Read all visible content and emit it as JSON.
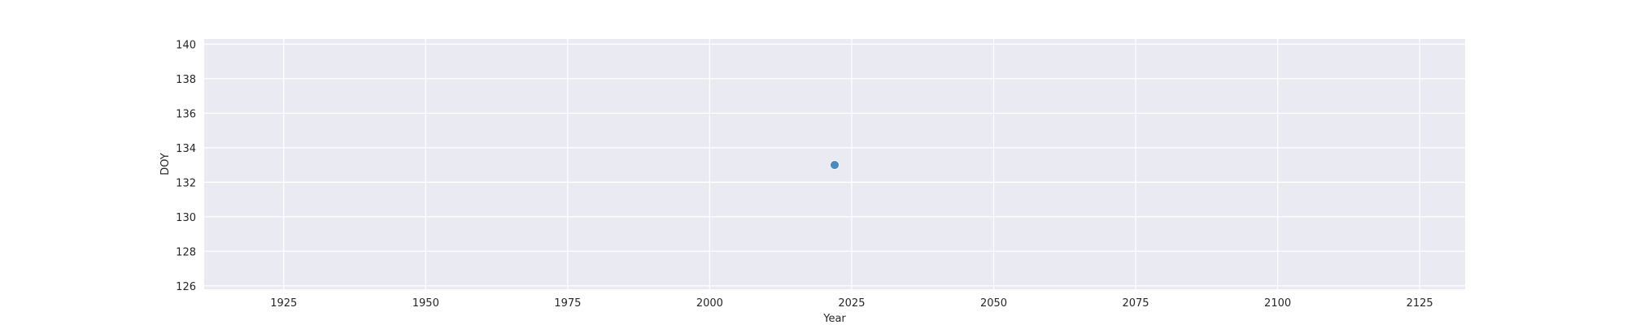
{
  "chart_data": {
    "type": "scatter",
    "title": "",
    "xlabel": "Year",
    "ylabel": "DOY",
    "xlim": [
      1911,
      2133
    ],
    "ylim": [
      125.8,
      140.3
    ],
    "xticks": [
      1925,
      1950,
      1975,
      2000,
      2025,
      2050,
      2075,
      2100,
      2125
    ],
    "yticks": [
      126,
      128,
      130,
      132,
      134,
      136,
      138,
      140
    ],
    "grid": true,
    "legend": false,
    "series": [
      {
        "color": "#4a8cc2",
        "points": [
          {
            "x": 2022,
            "y": 133
          }
        ]
      }
    ]
  }
}
